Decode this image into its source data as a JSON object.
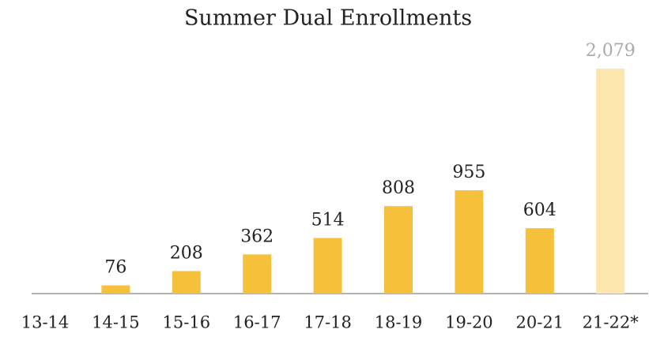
{
  "chart_data": {
    "type": "bar",
    "title": "Summer Dual Enrollments",
    "categories": [
      "13-14",
      "14-15",
      "15-16",
      "16-17",
      "17-18",
      "18-19",
      "19-20",
      "20-21",
      "21-22*"
    ],
    "values": [
      null,
      76,
      208,
      362,
      514,
      808,
      955,
      604,
      2079
    ],
    "value_labels": [
      null,
      "76",
      "208",
      "362",
      "514",
      "808",
      "955",
      "604",
      "2,079"
    ],
    "colors": [
      "#f5c03a",
      "#f5c03a",
      "#f5c03a",
      "#f5c03a",
      "#f5c03a",
      "#f5c03a",
      "#f5c03a",
      "#f5c03a",
      "#fce6ad"
    ],
    "value_label_colors": [
      "#222222",
      "#222222",
      "#222222",
      "#222222",
      "#222222",
      "#222222",
      "#222222",
      "#222222",
      "#aaaaaa"
    ],
    "ylim": [
      0,
      2079
    ]
  }
}
